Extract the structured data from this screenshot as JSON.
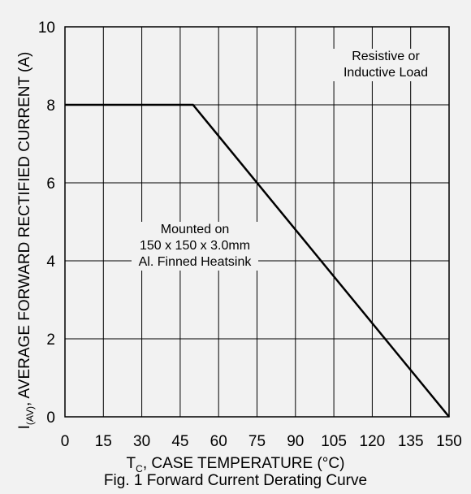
{
  "chart_data": {
    "type": "line",
    "title": "",
    "xlabel": "T_C, CASE TEMPERATURE (°C)",
    "ylabel": "I_(AV), AVERAGE FORWARD RECTIFIED CURRENT (A)",
    "xlim": [
      0,
      150
    ],
    "ylim": [
      0,
      10
    ],
    "xticks": [
      0,
      15,
      30,
      45,
      60,
      75,
      90,
      105,
      120,
      135,
      150
    ],
    "yticks": [
      0,
      2,
      4,
      6,
      8,
      10
    ],
    "grid": true,
    "series": [
      {
        "x": [
          0,
          50,
          150
        ],
        "y": [
          8,
          8,
          0
        ]
      }
    ],
    "annotations": [
      {
        "lines": [
          "Resistive or",
          "Inductive Load"
        ]
      },
      {
        "lines": [
          "Mounted on",
          "150 x 150 x 3.0mm",
          "Al. Finned Heatsink"
        ]
      }
    ],
    "caption": "Fig. 1 Forward Current Derating Curve",
    "axis_text": {
      "x_main": "T",
      "x_sub": "C",
      "x_rest": ", CASE TEMPERATURE (°C)",
      "y_main": "I",
      "y_sub": "(AV)",
      "y_rest": ", AVERAGE FORWARD RECTIFIED CURRENT (A)"
    },
    "line_color": "#000000",
    "grid_color": "#000000"
  }
}
